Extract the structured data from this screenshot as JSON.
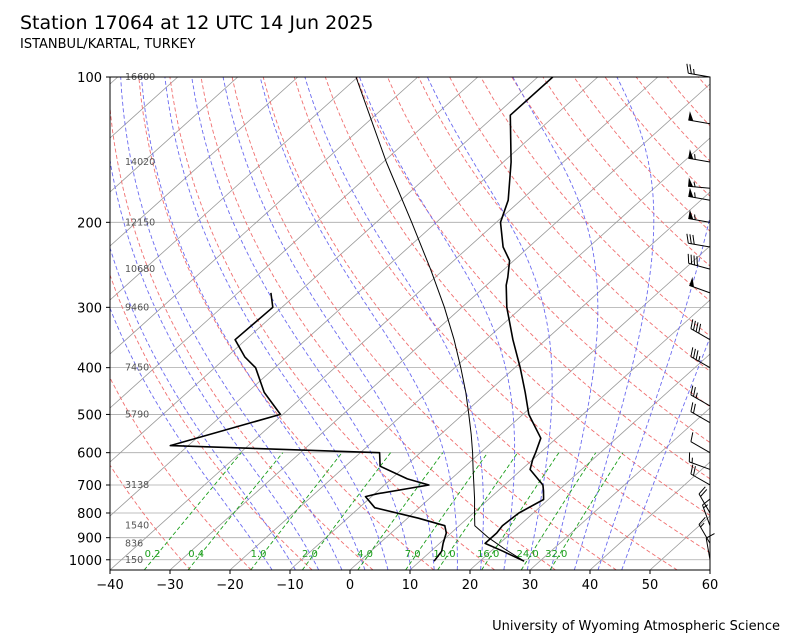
{
  "header": {
    "title": "Station 17064 at 12 UTC 14 Jun 2025",
    "subtitle": "ISTANBUL/KARTAL, TURKEY"
  },
  "footer": {
    "credit": "University of Wyoming Atmospheric Science"
  },
  "chart_data": {
    "type": "line",
    "plot_kind": "skew-T log-P",
    "xlim": [
      -40,
      60
    ],
    "ylim": [
      1050,
      100
    ],
    "y_scale": "log",
    "x_ticks": [
      -40,
      -30,
      -20,
      -10,
      0,
      10,
      20,
      30,
      40,
      50,
      60
    ],
    "x_tick_labels": [
      "−40",
      "−30",
      "−20",
      "−10",
      "0",
      "10",
      "20",
      "30",
      "40",
      "50",
      "60"
    ],
    "y_ticks": [
      100,
      200,
      300,
      400,
      500,
      600,
      700,
      800,
      900,
      1000
    ],
    "y_tick_labels": [
      "100",
      "200",
      "300",
      "400",
      "500",
      "600",
      "700",
      "800",
      "900",
      "1000"
    ],
    "height_labels": [
      {
        "p": 100,
        "text": "16600"
      },
      {
        "p": 150,
        "text": "14020"
      },
      {
        "p": 200,
        "text": "12150"
      },
      {
        "p": 250,
        "text": "10680"
      },
      {
        "p": 300,
        "text": "9460"
      },
      {
        "p": 400,
        "text": "7450"
      },
      {
        "p": 500,
        "text": "5790"
      },
      {
        "p": 700,
        "text": "3138"
      },
      {
        "p": 850,
        "text": "1540"
      },
      {
        "p": 925,
        "text": "836"
      },
      {
        "p": 1000,
        "text": "150"
      }
    ],
    "mixing_ratio_labels": [
      "0.2",
      "0.4",
      "1.0",
      "2.0",
      "4.0",
      "7.0",
      "10.0",
      "16.0",
      "24.0",
      "32.0"
    ],
    "colors": {
      "temperature": "#000000",
      "dewpoint": "#000000",
      "parcel": "#000000",
      "dry_adiabats": "#f07070",
      "moist_adiabats": "#6b6bf0",
      "mixing_ratio": "#1a9e1a",
      "isotherms": "#999999",
      "grid": "#aaaaaa"
    },
    "grid": true,
    "series": [
      {
        "role": "temperature",
        "points": [
          {
            "p": 1007,
            "t": 27.4
          },
          {
            "p": 960,
            "t": 22.0
          },
          {
            "p": 925,
            "t": 17.6
          },
          {
            "p": 880,
            "t": 17.6
          },
          {
            "p": 850,
            "t": 17.2
          },
          {
            "p": 800,
            "t": 17.6
          },
          {
            "p": 750,
            "t": 19.2
          },
          {
            "p": 720,
            "t": 17.6
          },
          {
            "p": 700,
            "t": 16.4
          },
          {
            "p": 650,
            "t": 11.4
          },
          {
            "p": 620,
            "t": 10.0
          },
          {
            "p": 600,
            "t": 9.2
          },
          {
            "p": 560,
            "t": 7.4
          },
          {
            "p": 500,
            "t": 1.0
          },
          {
            "p": 450,
            "t": -3.7
          },
          {
            "p": 400,
            "t": -9.1
          },
          {
            "p": 350,
            "t": -15.5
          },
          {
            "p": 300,
            "t": -22.5
          },
          {
            "p": 270,
            "t": -26.7
          },
          {
            "p": 260,
            "t": -27.9
          },
          {
            "p": 240,
            "t": -30.7
          },
          {
            "p": 225,
            "t": -34.3
          },
          {
            "p": 200,
            "t": -39.3
          },
          {
            "p": 180,
            "t": -42.1
          },
          {
            "p": 150,
            "t": -48.7
          },
          {
            "p": 120,
            "t": -57.5
          },
          {
            "p": 100,
            "t": -57.5
          }
        ]
      },
      {
        "role": "dewpoint",
        "points": [
          {
            "p": 1007,
            "t": 12.4
          },
          {
            "p": 960,
            "t": 11.8
          },
          {
            "p": 925,
            "t": 10.6
          },
          {
            "p": 880,
            "t": 9.2
          },
          {
            "p": 850,
            "t": 7.6
          },
          {
            "p": 820,
            "t": 1.8
          },
          {
            "p": 780,
            "t": -7.4
          },
          {
            "p": 740,
            "t": -11.0
          },
          {
            "p": 730,
            "t": -9.6
          },
          {
            "p": 700,
            "t": -2.6
          },
          {
            "p": 680,
            "t": -7.3
          },
          {
            "p": 640,
            "t": -14.2
          },
          {
            "p": 600,
            "t": -16.8
          },
          {
            "p": 580,
            "t": -53.0
          },
          {
            "p": 500,
            "t": -40.4
          },
          {
            "p": 450,
            "t": -47.2
          },
          {
            "p": 400,
            "t": -53.2
          },
          {
            "p": 380,
            "t": -57.0
          },
          {
            "p": 350,
            "t": -61.8
          },
          {
            "p": 300,
            "t": -61.5
          },
          {
            "p": 280,
            "t": -64.5
          }
        ]
      },
      {
        "role": "parcel",
        "points": [
          {
            "p": 1007,
            "t": 27.4
          },
          {
            "p": 950,
            "t": 21.9
          },
          {
            "p": 900,
            "t": 17.1
          },
          {
            "p": 850,
            "t": 12.6
          },
          {
            "p": 800,
            "t": 10.2
          },
          {
            "p": 750,
            "t": 7.7
          },
          {
            "p": 700,
            "t": 4.9
          },
          {
            "p": 650,
            "t": 1.9
          },
          {
            "p": 600,
            "t": -1.3
          },
          {
            "p": 550,
            "t": -4.9
          },
          {
            "p": 500,
            "t": -9.0
          },
          {
            "p": 450,
            "t": -13.6
          },
          {
            "p": 400,
            "t": -19.0
          },
          {
            "p": 350,
            "t": -25.3
          },
          {
            "p": 300,
            "t": -32.9
          },
          {
            "p": 250,
            "t": -42.3
          },
          {
            "p": 200,
            "t": -54.1
          },
          {
            "p": 150,
            "t": -69.5
          },
          {
            "p": 100,
            "t": -90.3
          }
        ]
      }
    ],
    "wind_barbs": [
      {
        "p": 1000,
        "speed_kt": 10,
        "dir": 350
      },
      {
        "p": 925,
        "speed_kt": 15,
        "dir": 330
      },
      {
        "p": 850,
        "speed_kt": 15,
        "dir": 340
      },
      {
        "p": 800,
        "speed_kt": 20,
        "dir": 330
      },
      {
        "p": 700,
        "speed_kt": 20,
        "dir": 300
      },
      {
        "p": 650,
        "speed_kt": 15,
        "dir": 290
      },
      {
        "p": 600,
        "speed_kt": 10,
        "dir": 300
      },
      {
        "p": 520,
        "speed_kt": 20,
        "dir": 300
      },
      {
        "p": 480,
        "speed_kt": 25,
        "dir": 300
      },
      {
        "p": 400,
        "speed_kt": 35,
        "dir": 300
      },
      {
        "p": 350,
        "speed_kt": 40,
        "dir": 300
      },
      {
        "p": 280,
        "speed_kt": 50,
        "dir": 290
      },
      {
        "p": 250,
        "speed_kt": 40,
        "dir": 285
      },
      {
        "p": 225,
        "speed_kt": 30,
        "dir": 280
      },
      {
        "p": 200,
        "speed_kt": 55,
        "dir": 280
      },
      {
        "p": 180,
        "speed_kt": 55,
        "dir": 280
      },
      {
        "p": 170,
        "speed_kt": 55,
        "dir": 275
      },
      {
        "p": 150,
        "speed_kt": 55,
        "dir": 280
      },
      {
        "p": 125,
        "speed_kt": 50,
        "dir": 280
      },
      {
        "p": 100,
        "speed_kt": 25,
        "dir": 280
      }
    ]
  }
}
